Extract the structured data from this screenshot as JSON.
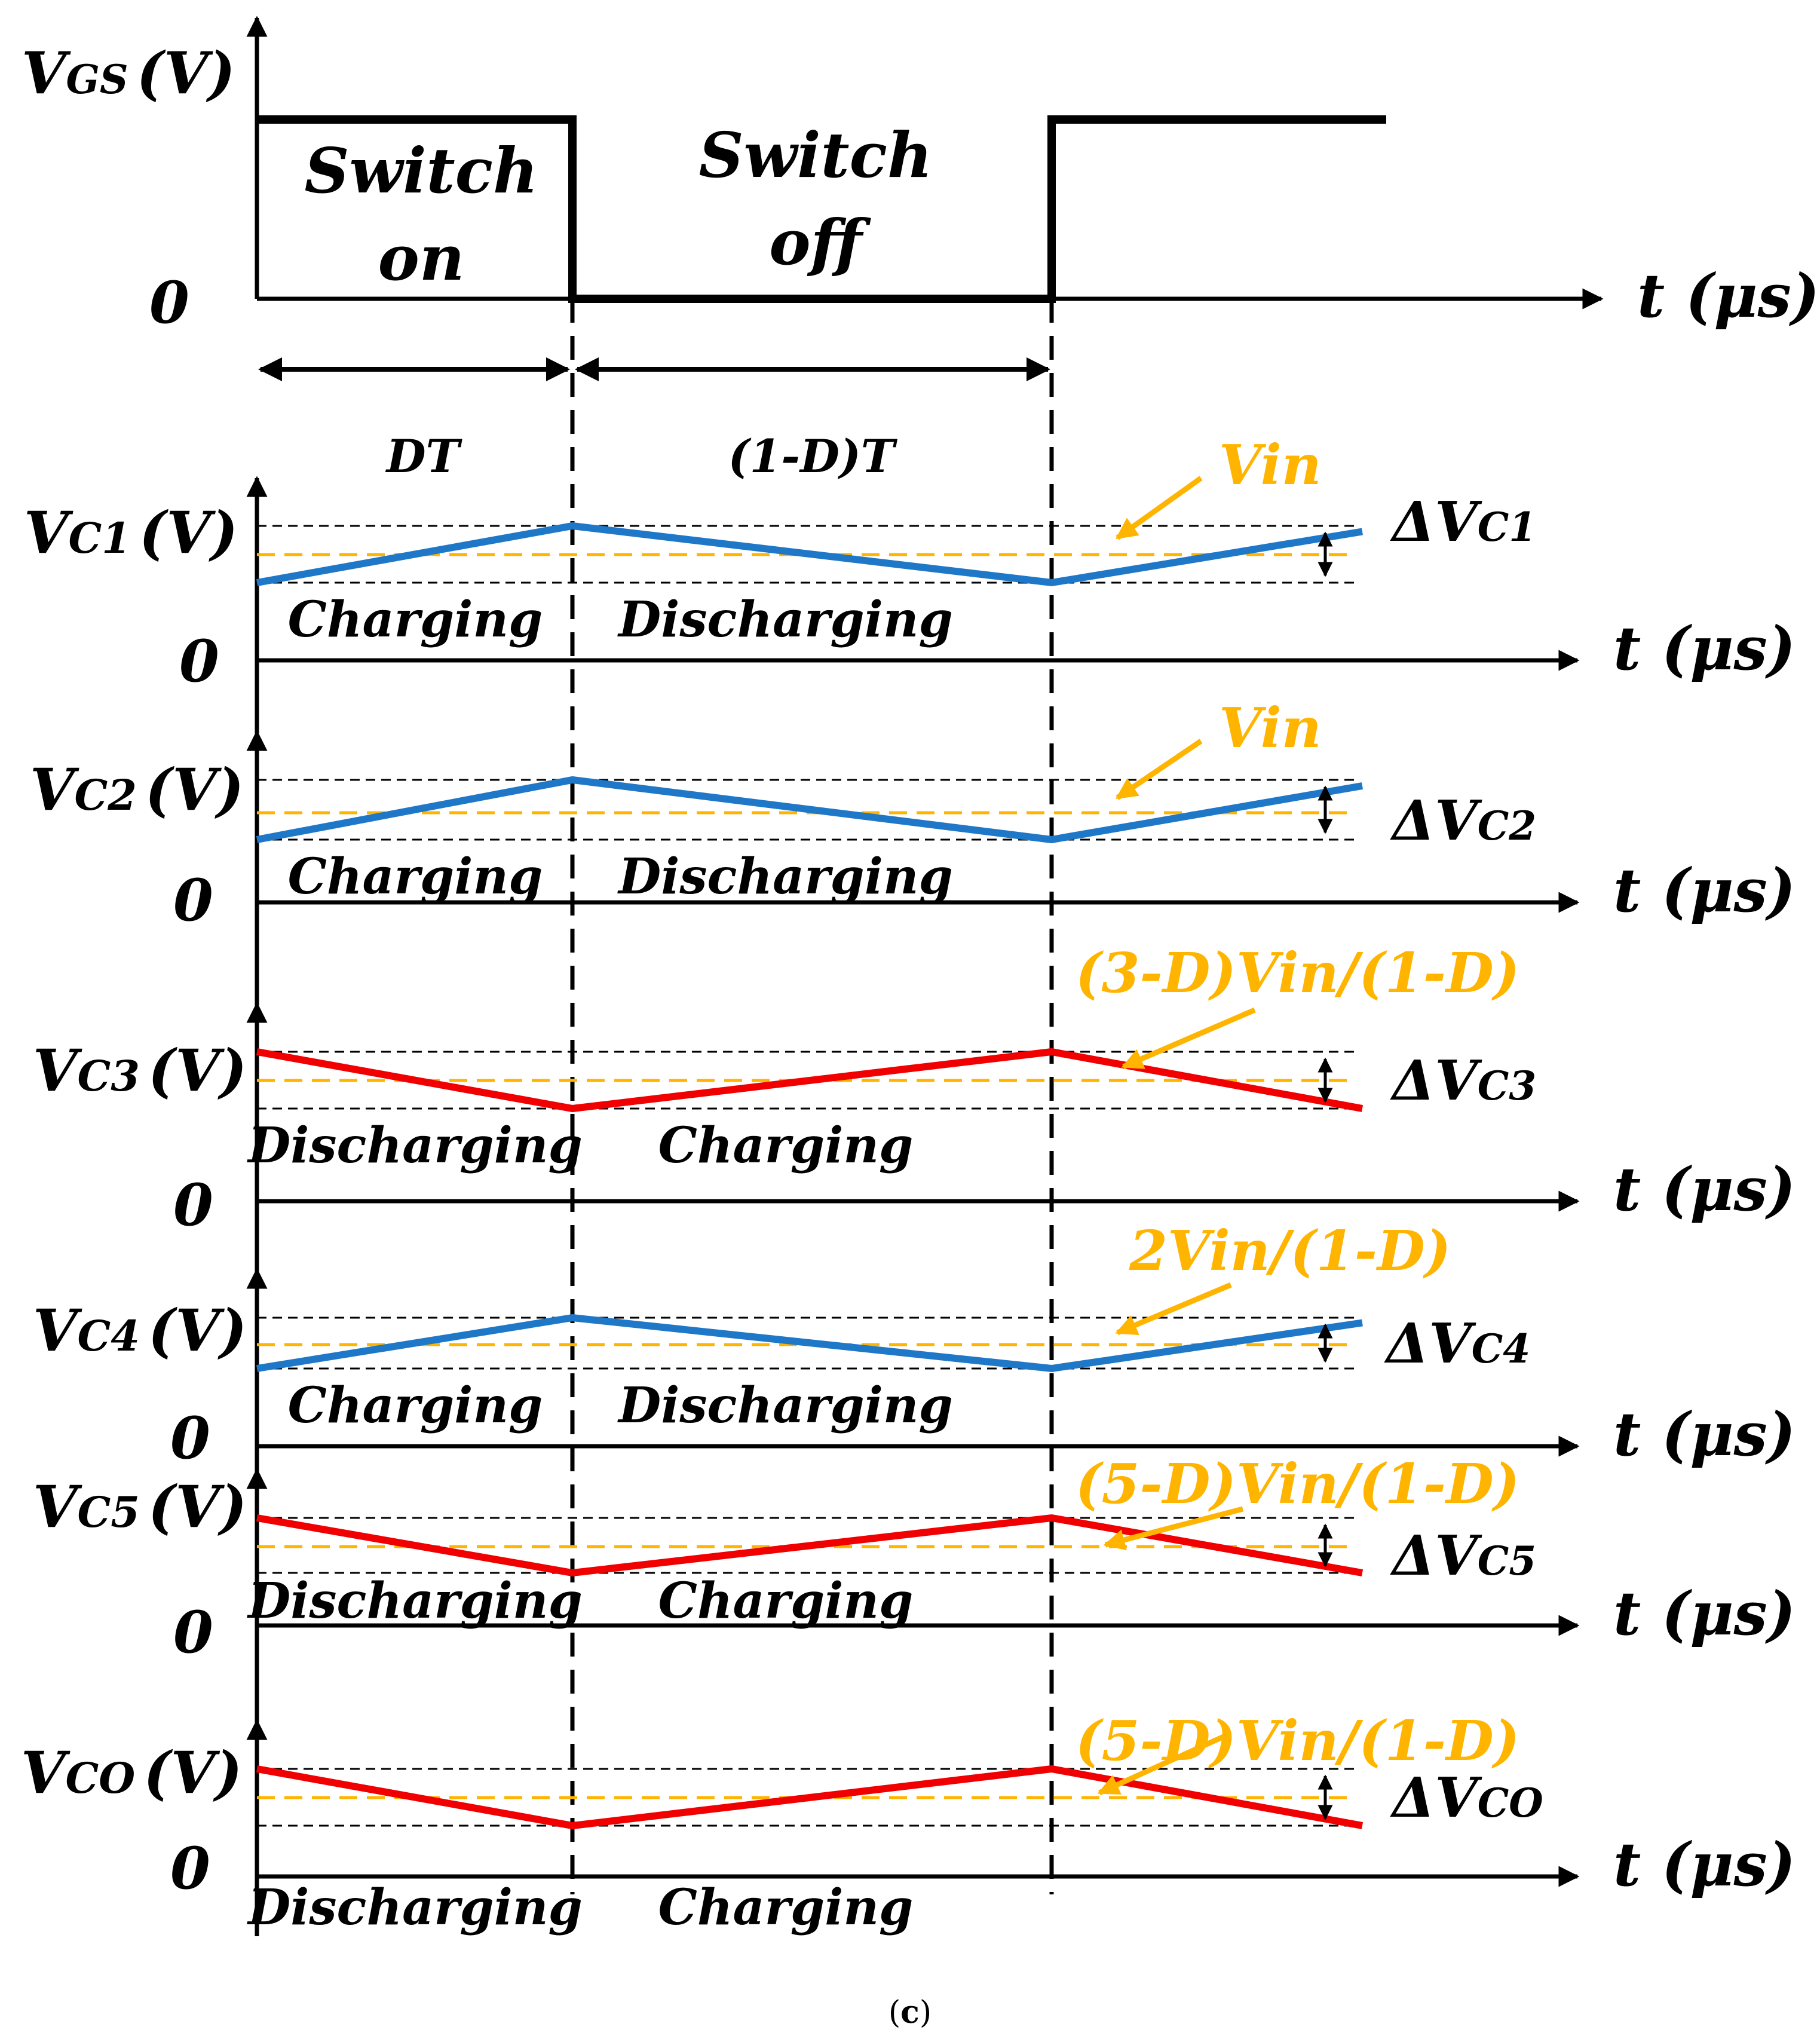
{
  "colors": {
    "charging_trace": "#1F77C8",
    "discharging_trace": "#F00000",
    "reference_level": "#FFB400",
    "axis": "#000000"
  },
  "gate_panel": {
    "y_label": "V",
    "y_label_sub": "GS",
    "y_label_unit": "(V)",
    "zero_label": "0",
    "x_label": "t (μs)",
    "on_line1": "Switch",
    "on_line2": "on",
    "off_line1": "Switch",
    "off_line2": "off",
    "dt_label": "DT",
    "one_minus_dt_label": "(1-D)T"
  },
  "panels": [
    {
      "name": "vc1",
      "y_label": "V",
      "y_sub": "C1",
      "y_unit": "(V)",
      "zero": "0",
      "x_label": "t (μs)",
      "ref_label": "Vin",
      "delta": "ΔV",
      "delta_sub": "C1",
      "color": "#1F77C8",
      "first_phase": "Charging",
      "second_phase": "Discharging"
    },
    {
      "name": "vc2",
      "y_label": "V",
      "y_sub": "C2",
      "y_unit": "(V)",
      "zero": "0",
      "x_label": "t (μs)",
      "ref_label": "Vin",
      "delta": "ΔV",
      "delta_sub": "C2",
      "color": "#1F77C8",
      "first_phase": "Charging",
      "second_phase": "Discharging"
    },
    {
      "name": "vc3",
      "y_label": "V",
      "y_sub": "C3",
      "y_unit": "(V)",
      "zero": "0",
      "x_label": "t (μs)",
      "ref_label": "(3-D)Vin/(1-D)",
      "delta": "ΔV",
      "delta_sub": "C3",
      "color": "#F00000",
      "first_phase": "Discharging",
      "second_phase": "Charging"
    },
    {
      "name": "vc4",
      "y_label": "V",
      "y_sub": "C4",
      "y_unit": "(V)",
      "zero": "0",
      "x_label": "t (μs)",
      "ref_label": "2Vin/(1-D)",
      "delta": "ΔV",
      "delta_sub": "C4",
      "color": "#1F77C8",
      "first_phase": "Charging",
      "second_phase": "Discharging"
    },
    {
      "name": "vc5",
      "y_label": "V",
      "y_sub": "C5",
      "y_unit": "(V)",
      "zero": "0",
      "x_label": "t (μs)",
      "ref_label": "(5-D)Vin/(1-D)",
      "delta": "ΔV",
      "delta_sub": "C5",
      "color": "#F00000",
      "first_phase": "Discharging",
      "second_phase": "Charging"
    },
    {
      "name": "vco",
      "y_label": "V",
      "y_sub": "CO",
      "y_unit": "(V)",
      "zero": "0",
      "x_label": "t (μs)",
      "ref_label": "(5-D)Vin/(1-D)",
      "delta": "ΔV",
      "delta_sub": "CO",
      "color": "#F00000",
      "first_phase": "Discharging",
      "second_phase": "Charging"
    }
  ],
  "caption": {
    "open": "(",
    "letter": "c",
    "close": ")"
  }
}
